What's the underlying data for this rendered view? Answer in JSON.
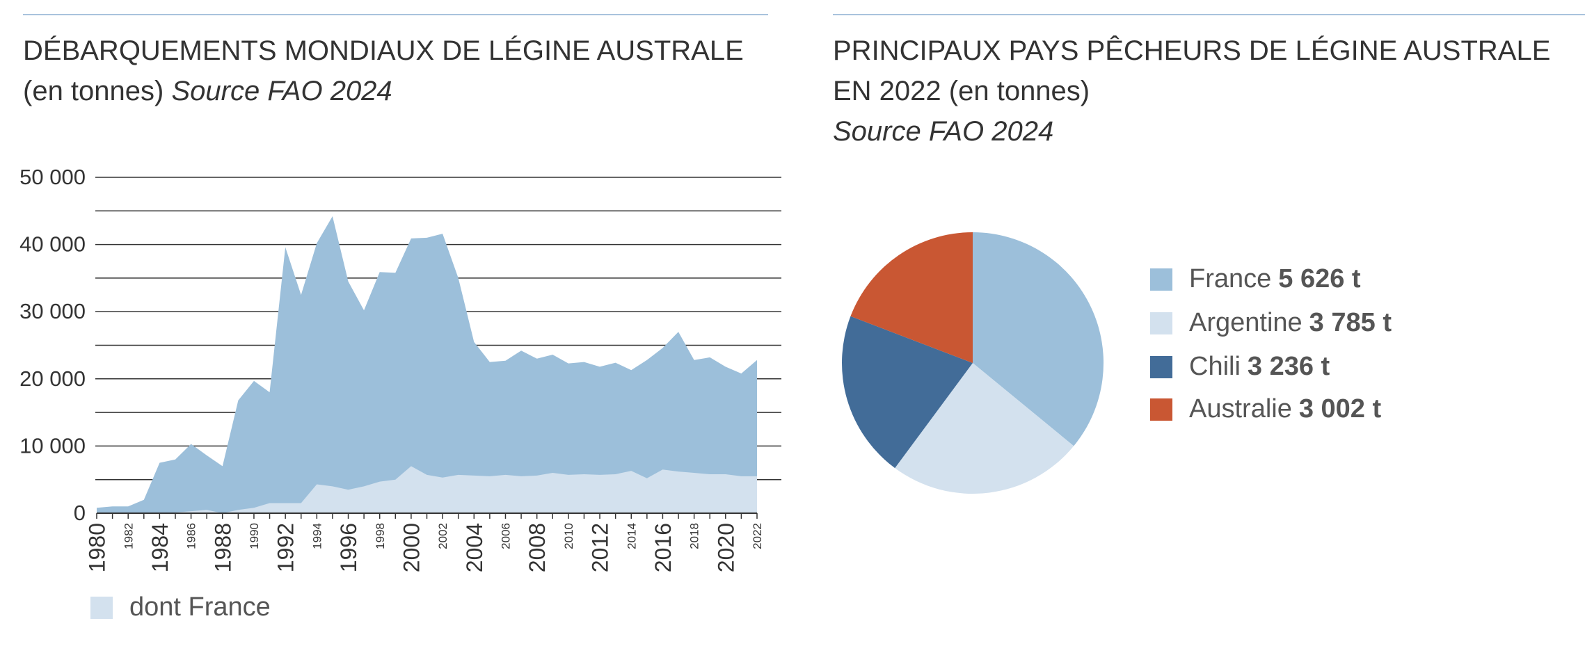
{
  "left_chart": {
    "title_line1": "DÉBARQUEMENTS MONDIAUX DE LÉGINE AUSTRALE",
    "title_line2": "(en tonnes)",
    "source": "Source FAO 2024",
    "legend_label": "dont France"
  },
  "right_chart": {
    "title_line1": "PRINCIPAUX PAYS PÊCHEURS DE LÉGINE AUSTRALE",
    "title_line2": "EN 2022 (en tonnes)",
    "source": "Source FAO 2024"
  },
  "colors": {
    "world_area": "#9cbfda",
    "france_area": "#d3e1ee",
    "france": "#9cbfda",
    "argentine": "#d3e1ee",
    "chili": "#426c98",
    "australie": "#c95733",
    "gridline": "#333333",
    "rule": "#a9c3dd"
  },
  "chart_data": [
    {
      "type": "area",
      "title": "DÉBARQUEMENTS MONDIAUX DE LÉGINE AUSTRALE (en tonnes) Source FAO 2024",
      "xlabel": "",
      "ylabel": "",
      "x": [
        1980,
        1981,
        1982,
        1983,
        1984,
        1985,
        1986,
        1987,
        1988,
        1989,
        1990,
        1991,
        1992,
        1993,
        1994,
        1995,
        1996,
        1997,
        1998,
        1999,
        2000,
        2001,
        2002,
        2003,
        2004,
        2005,
        2006,
        2007,
        2008,
        2009,
        2010,
        2011,
        2012,
        2013,
        2014,
        2015,
        2016,
        2017,
        2018,
        2019,
        2020,
        2021,
        2022
      ],
      "x_tick_labels": [
        "1980",
        "1982",
        "1984",
        "1986",
        "1988",
        "1990",
        "1992",
        "1994",
        "1996",
        "1998",
        "2000",
        "2002",
        "2004",
        "2006",
        "2008",
        "2010",
        "2012",
        "2014",
        "2016",
        "2018",
        "2020",
        "2022"
      ],
      "y_tick_labels": [
        "0",
        "10 000",
        "20 000",
        "30 000",
        "40 000",
        "50 000"
      ],
      "y_ticks": [
        0,
        10000,
        20000,
        30000,
        40000,
        50000
      ],
      "ylim": [
        0,
        50000
      ],
      "grid": true,
      "legend_position": "bottom-left",
      "series": [
        {
          "name": "",
          "values": [
            800,
            1000,
            1000,
            2000,
            7500,
            8000,
            10300,
            8600,
            7000,
            16800,
            19700,
            18000,
            39600,
            32500,
            40200,
            44200,
            34500,
            30200,
            35900,
            35800,
            40900,
            41000,
            41600,
            35000,
            25500,
            22500,
            22700,
            24200,
            23000,
            23600,
            22300,
            22500,
            21800,
            22400,
            21300,
            22800,
            24600,
            27000,
            22800,
            23200,
            21800,
            20800,
            22800
          ]
        },
        {
          "name": "dont France",
          "values": [
            0,
            0,
            0,
            0,
            0,
            100,
            300,
            500,
            0,
            500,
            800,
            1500,
            1500,
            1500,
            4300,
            4000,
            3500,
            4000,
            4700,
            5000,
            7000,
            5700,
            5300,
            5700,
            5600,
            5500,
            5700,
            5500,
            5600,
            6000,
            5700,
            5800,
            5700,
            5800,
            6300,
            5200,
            6500,
            6200,
            6000,
            5800,
            5800,
            5500,
            5500
          ]
        }
      ]
    },
    {
      "type": "pie",
      "title": "PRINCIPAUX PAYS PÊCHEURS DE LÉGINE AUSTRALE EN 2022 (en tonnes) Source FAO 2024",
      "legend_position": "right",
      "slices": [
        {
          "label": "France",
          "value": 5626,
          "value_label": "5 626 t",
          "color": "#9cbfda"
        },
        {
          "label": "Argentine",
          "value": 3785,
          "value_label": "3 785 t",
          "color": "#d3e1ee"
        },
        {
          "label": "Chili",
          "value": 3236,
          "value_label": "3 236 t",
          "color": "#426c98"
        },
        {
          "label": "Australie",
          "value": 3002,
          "value_label": "3 002 t",
          "color": "#c95733"
        }
      ]
    }
  ]
}
